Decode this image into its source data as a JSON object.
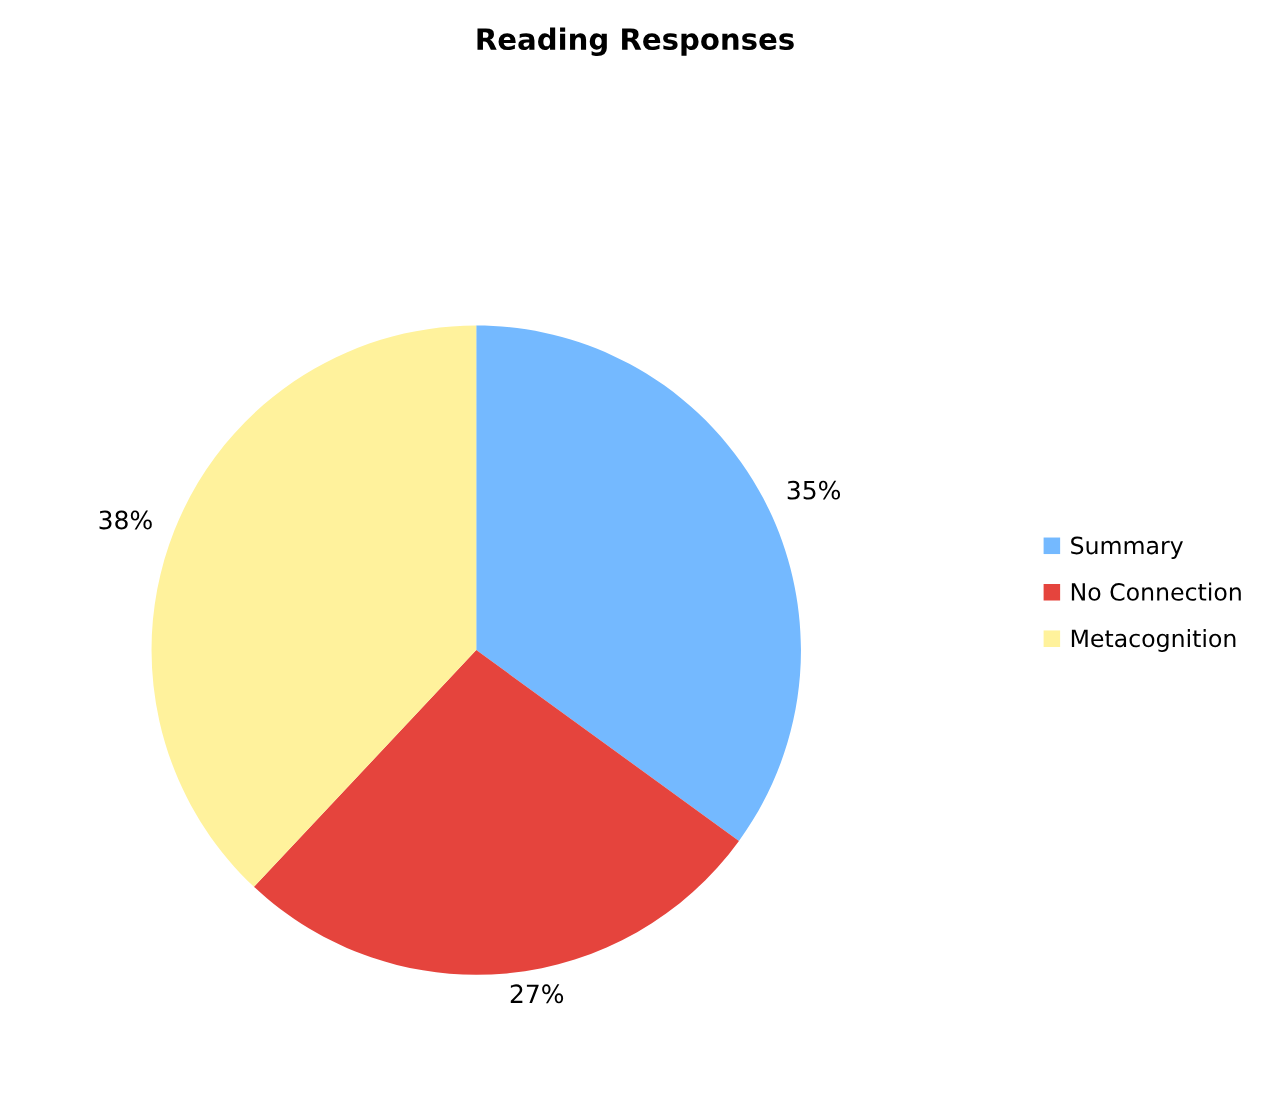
{
  "chart_data": {
    "type": "pie",
    "title": "Reading Responses",
    "categories": [
      "Summary",
      "No Connection",
      "Metacognition"
    ],
    "values": [
      35,
      27,
      38
    ],
    "colors": [
      "#74b9ff",
      "#e5443d",
      "#fff29c"
    ],
    "value_labels": [
      "35%",
      "27%",
      "38%"
    ],
    "legend": "right"
  }
}
